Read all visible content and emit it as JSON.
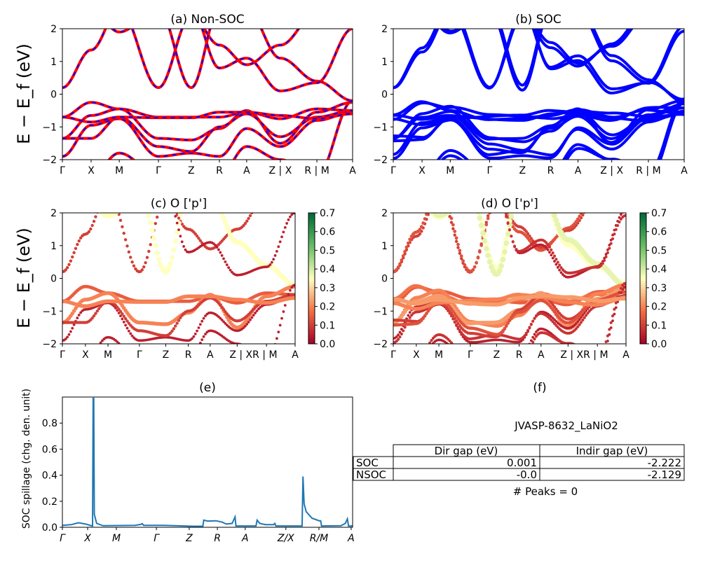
{
  "colors": {
    "nonsoc_solid": "#ff0000",
    "nonsoc_dash": "#0000ff",
    "soc": "#0000ff",
    "spillage": "#1f77b4"
  },
  "band_axes": {
    "ylim": [
      -2,
      2
    ],
    "yticks": [
      "2",
      "1",
      "0",
      "−1",
      "−2"
    ],
    "ylabel": "E − E_f (eV)",
    "kticks": [
      "Γ",
      "X",
      "M",
      "Γ",
      "Z",
      "R",
      "A",
      "Z | X",
      "R | M",
      "A"
    ],
    "kticks_cd": [
      "Γ",
      "X",
      "M",
      "Γ",
      "Z",
      "R",
      "A",
      "Z | XR | M",
      "",
      "A"
    ],
    "kpos": [
      0,
      0.099,
      0.196,
      0.331,
      0.444,
      0.541,
      0.635,
      0.751,
      0.877,
      1
    ]
  },
  "panels": {
    "a": {
      "title": "(a) Non-SOC"
    },
    "b": {
      "title": "(b) SOC"
    },
    "c": {
      "title": "(c)  O ['p']"
    },
    "d": {
      "title": "(d) O ['p']"
    },
    "e": {
      "title": "(e)"
    },
    "f": {
      "title": "(f)"
    }
  },
  "colorbar": {
    "range": [
      0,
      0.7
    ],
    "ticks": [
      "0.0",
      "0.1",
      "0.2",
      "0.3",
      "0.4",
      "0.5",
      "0.6",
      "0.7"
    ],
    "colormap": "RdYlGn"
  },
  "chart_data": [
    {
      "type": "line",
      "title": "(a) Non-SOC",
      "ylabel": "E − E_f (eV)",
      "ylim": [
        -2,
        2
      ],
      "bands": [
        [
          0.2,
          1.35,
          2.6,
          0.2,
          2.4,
          1.5,
          0.9,
          1.5,
          2.5,
          2.3
        ],
        [
          2.6,
          2.6,
          1.9,
          2.6,
          0.2,
          2.6,
          2.6,
          1.1,
          0.4,
          -0.2
        ],
        [
          -0.7,
          -0.25,
          -0.45,
          -0.7,
          -0.7,
          -0.7,
          -0.55,
          -0.75,
          -0.45,
          -0.5
        ],
        [
          -1.35,
          -0.65,
          -0.45,
          -1.35,
          -1.4,
          -1.05,
          -0.5,
          -1.5,
          -0.55,
          -0.25
        ],
        [
          -1.9,
          -0.95,
          -0.75,
          -1.9,
          -1.8,
          -1.9,
          -1.05,
          -1.6,
          -0.8,
          -0.55
        ],
        [
          -1.35,
          -1.35,
          -0.7,
          -1.6,
          -1.75,
          -1.0,
          -0.6,
          -1.3,
          -0.7,
          -0.5
        ],
        [
          -2.5,
          -2.5,
          -1.8,
          -2.5,
          -2.2,
          -2.5,
          -1.6,
          -2.0,
          -2.5,
          -0.2
        ],
        [
          -0.7,
          -0.85,
          -0.7,
          -0.72,
          -0.72,
          -0.55,
          -0.55,
          -0.65,
          -0.75,
          -0.6
        ],
        [
          2.6,
          2.6,
          2.6,
          2.6,
          2.6,
          0.8,
          1.1,
          0.1,
          0.35,
          2.0
        ]
      ],
      "o_p_weights": [
        0.1,
        0.35,
        0.15,
        0.2,
        0.05,
        0.1,
        0.05,
        0.2,
        0.05
      ]
    },
    {
      "type": "scatter",
      "title": "(e)",
      "ylabel": "SOC spillage (chg. den. unit)",
      "ylim": [
        0,
        1.0
      ],
      "yticks": [
        "0.0",
        "0.2",
        "0.4",
        "0.6",
        "0.8"
      ],
      "xticks": [
        "Γ",
        "X",
        "M",
        "Γ",
        "Z",
        "R",
        "A",
        "Z/X",
        "R/M",
        "A"
      ],
      "xtick_pos": [
        0,
        0.087,
        0.186,
        0.324,
        0.437,
        0.534,
        0.63,
        0.77,
        0.884,
        0.995
      ],
      "x": [
        0,
        0.03,
        0.055,
        0.08,
        0.1,
        0.104,
        0.106,
        0.108,
        0.11,
        0.118,
        0.14,
        0.25,
        0.27,
        0.275,
        0.28,
        0.35,
        0.45,
        0.484,
        0.487,
        0.5,
        0.53,
        0.55,
        0.565,
        0.585,
        0.595,
        0.598,
        0.667,
        0.671,
        0.68,
        0.7,
        0.728,
        0.732,
        0.736,
        0.826,
        0.829,
        0.833,
        0.84,
        0.86,
        0.885,
        0.89,
        0.893,
        0.96,
        0.975,
        0.982,
        0.986,
        1.0
      ],
      "y": [
        0.015,
        0.02,
        0.035,
        0.025,
        0.012,
        0.01,
        0.99,
        0.99,
        0.1,
        0.03,
        0.012,
        0.015,
        0.022,
        0.028,
        0.015,
        0.015,
        0.008,
        0.008,
        0.055,
        0.048,
        0.05,
        0.04,
        0.025,
        0.03,
        0.08,
        0.01,
        0.01,
        0.055,
        0.03,
        0.02,
        0.02,
        0.03,
        0.01,
        0.01,
        0.39,
        0.18,
        0.12,
        0.07,
        0.05,
        0.05,
        0.01,
        0.012,
        0.03,
        0.065,
        0.01,
        0.01
      ]
    }
  ],
  "table": {
    "title": "JVASP-8632_LaNiO2",
    "headers": [
      "",
      "Dir gap (eV)",
      "Indir gap (eV)"
    ],
    "rows": [
      {
        "label": "SOC",
        "dir": "0.001",
        "indir": "-2.222"
      },
      {
        "label": "NSOC",
        "dir": "-0.0",
        "indir": "-2.129"
      }
    ],
    "peaks": "# Peaks = 0"
  }
}
